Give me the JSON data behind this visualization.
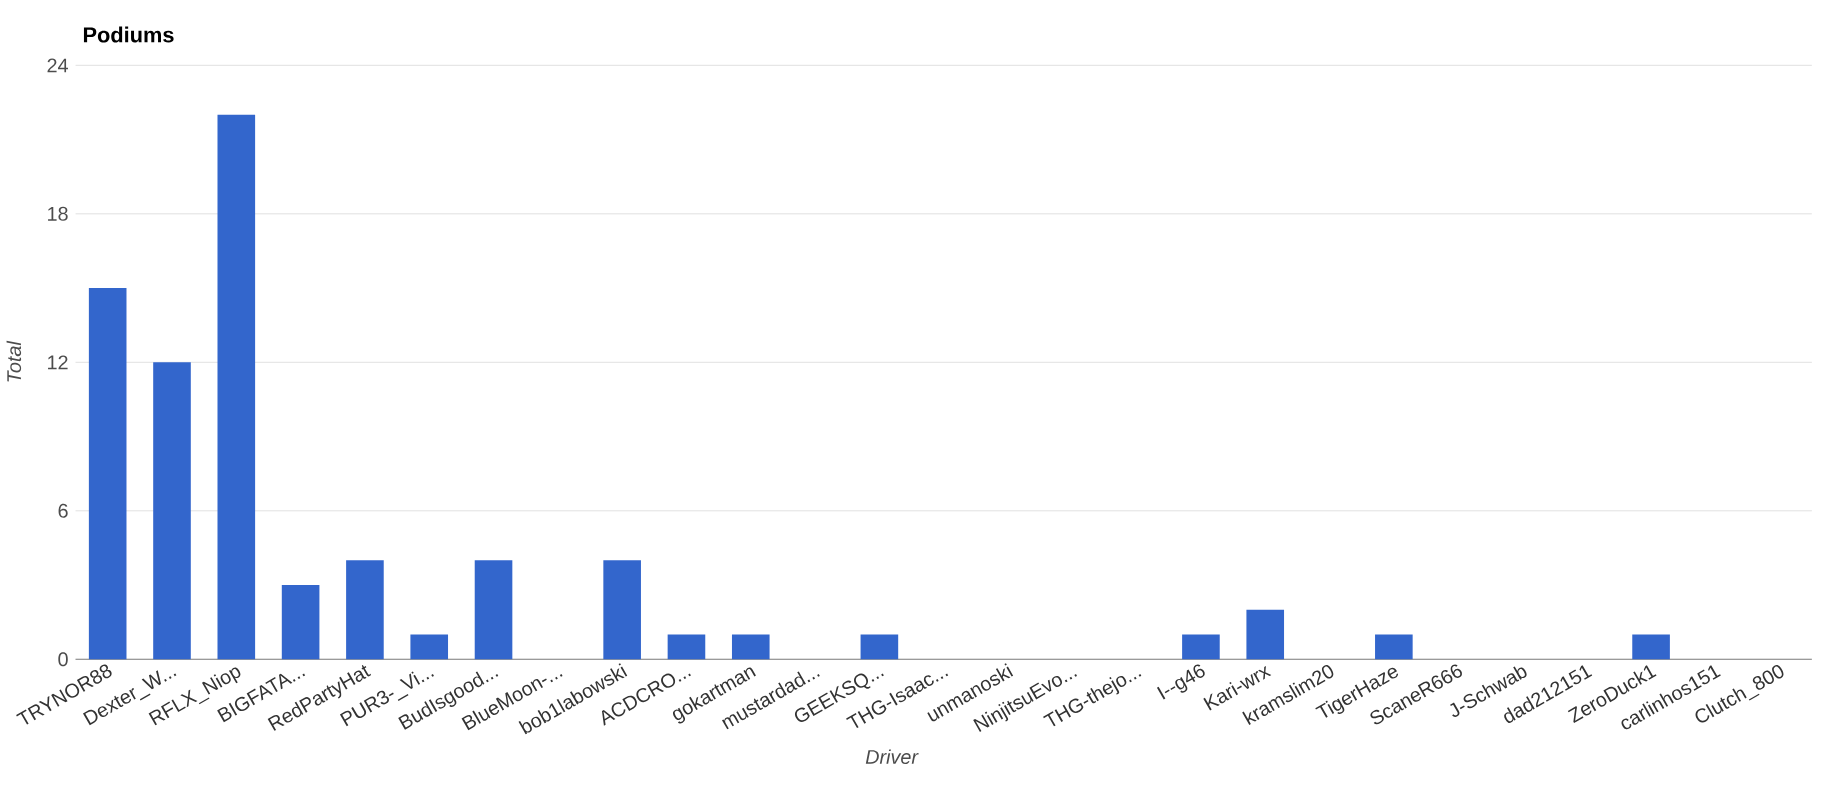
{
  "chart_data": {
    "type": "bar",
    "title": "Podiums",
    "xlabel": "Driver",
    "ylabel": "Total",
    "categories": [
      "TRYNOR88",
      "Dexter_W...",
      "RFLX_Niop",
      "BIGFATA...",
      "RedPartyHat",
      "PUR3-_Vi...",
      "BudIsgood...",
      "BlueMoon-...",
      "bob1labowski",
      "ACDCRO...",
      "gokartman",
      "mustardad...",
      "GEEKSQ...",
      "THG-Isaac...",
      "unmanoski",
      "NinjitsuEvo...",
      "THG-thejo...",
      "I--g46",
      "Kari-wrx",
      "kramslim20",
      "TigerHaze",
      "ScaneR666",
      "J-Schwab",
      "dad212151",
      "ZeroDuck1",
      "carlinhos151",
      "Clutch_800"
    ],
    "values": [
      15,
      12,
      22,
      3,
      4,
      1,
      4,
      0,
      4,
      1,
      1,
      0,
      1,
      0,
      0,
      0,
      0,
      1,
      2,
      0,
      1,
      0,
      0,
      0,
      1,
      0,
      0
    ],
    "color": "#3366cc",
    "ylim": [
      0,
      24
    ],
    "yticks": [
      0,
      6,
      12,
      18,
      24
    ],
    "grid": "y"
  }
}
